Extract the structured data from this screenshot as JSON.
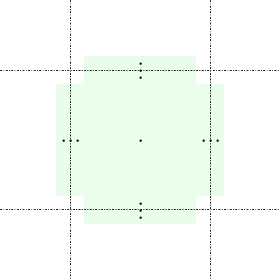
{
  "colors": {
    "background": "#ffffff",
    "region_fill": "#eafcea",
    "region_edge": "#3cc83c",
    "guide_line": "#111111",
    "marker": "#000000"
  }
}
